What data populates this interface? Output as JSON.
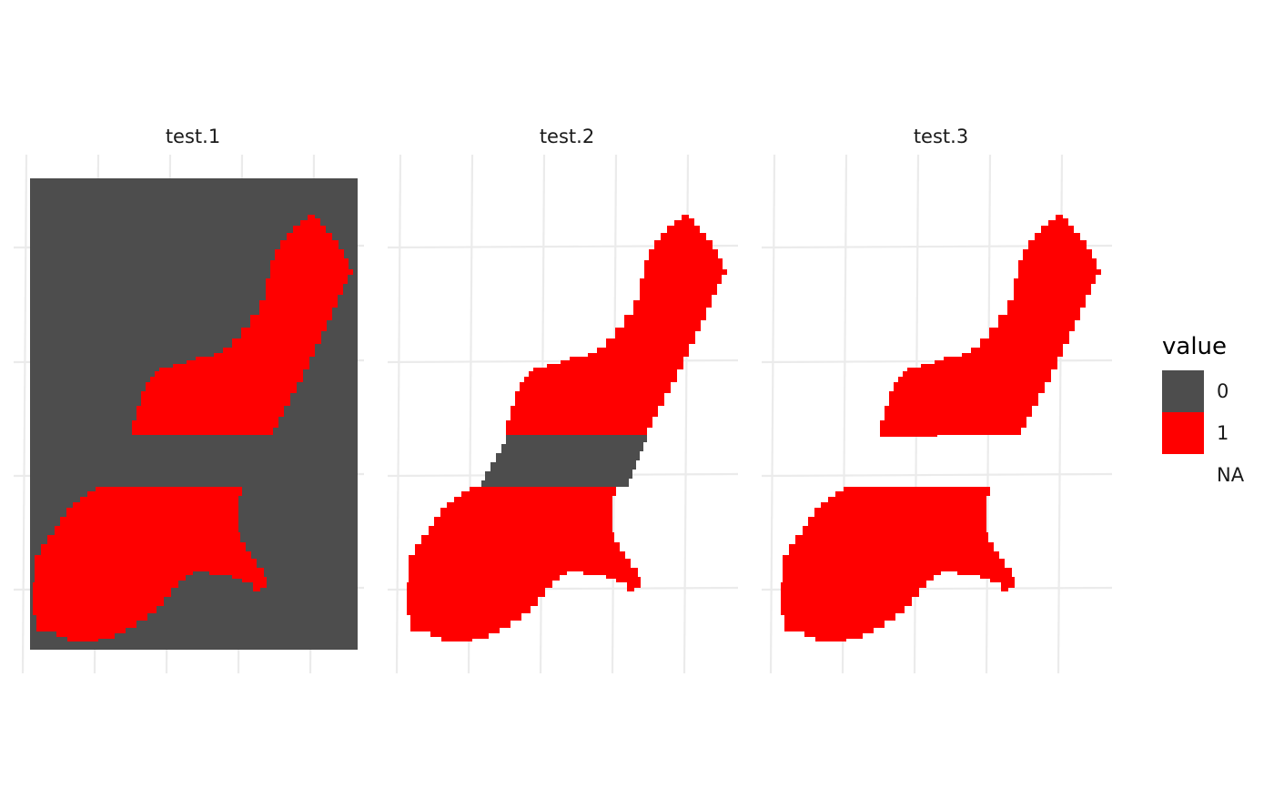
{
  "chart_data": {
    "type": "heatmap",
    "facets": [
      {
        "title": "test.1",
        "background_value": "0",
        "band_value": "0"
      },
      {
        "title": "test.2",
        "background_value": "NA",
        "band_value": "0"
      },
      {
        "title": "test.3",
        "background_value": "NA",
        "band_value": "NA"
      }
    ],
    "shape_value": "1",
    "grid": true,
    "legend": {
      "title": "value",
      "position": "right",
      "entries": [
        {
          "label": "0",
          "color": "#4d4d4d"
        },
        {
          "label": "1",
          "color": "#ff0000"
        },
        {
          "label": "NA",
          "color": "transparent"
        }
      ]
    }
  }
}
